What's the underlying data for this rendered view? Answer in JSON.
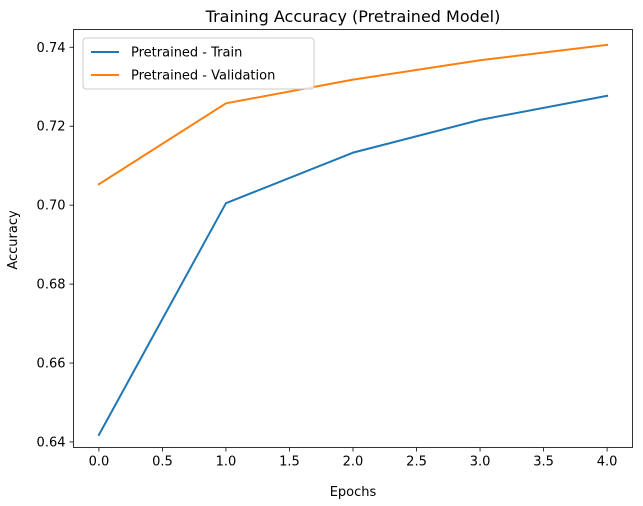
{
  "chart_data": {
    "type": "line",
    "title": "Training Accuracy (Pretrained Model)",
    "xlabel": "Epochs",
    "ylabel": "Accuracy",
    "x": [
      0,
      1,
      2,
      3,
      4
    ],
    "xlim": [
      -0.2,
      4.2
    ],
    "ylim": [
      0.6386,
      0.7445
    ],
    "xticks": [
      0.0,
      0.5,
      1.0,
      1.5,
      2.0,
      2.5,
      3.0,
      3.5,
      4.0
    ],
    "xtick_labels": [
      "0.0",
      "0.5",
      "1.0",
      "1.5",
      "2.0",
      "2.5",
      "3.0",
      "3.5",
      "4.0"
    ],
    "yticks": [
      0.64,
      0.66,
      0.68,
      0.7,
      0.72,
      0.74
    ],
    "ytick_labels": [
      "0.64",
      "0.66",
      "0.68",
      "0.70",
      "0.72",
      "0.74"
    ],
    "grid": false,
    "legend_position": "top-left",
    "series": [
      {
        "name": "Pretrained - Train",
        "color": "#1f77b4",
        "values": [
          0.6418,
          0.7005,
          0.7133,
          0.7216,
          0.7277
        ]
      },
      {
        "name": "Pretrained - Validation",
        "color": "#ff7f0e",
        "values": [
          0.7053,
          0.7258,
          0.7318,
          0.7367,
          0.7406
        ]
      }
    ]
  }
}
